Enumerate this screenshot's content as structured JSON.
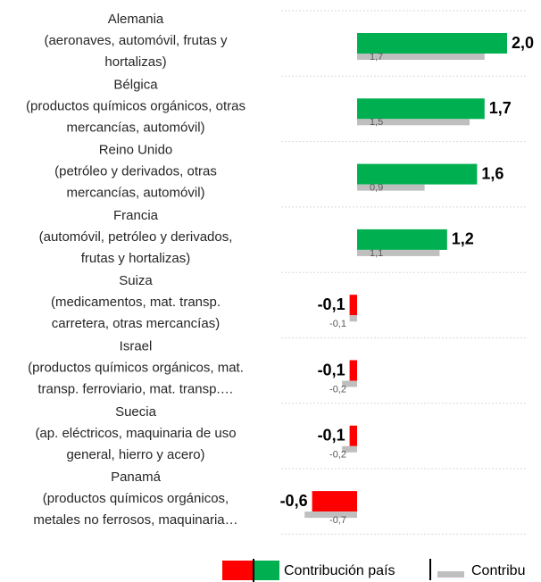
{
  "chart_data": {
    "type": "bar",
    "orientation": "horizontal",
    "categories": [
      [
        "Alemania",
        "(aeronaves, automóvil, frutas y",
        "hortalizas)"
      ],
      [
        "Bélgica",
        "(productos químicos orgánicos, otras",
        "mercancías, automóvil)"
      ],
      [
        "Reino Unido",
        "(petróleo y derivados, otras",
        "mercancías, automóvil)"
      ],
      [
        "Francia",
        "(automóvil, petróleo y derivados,",
        "frutas y hortalizas)"
      ],
      [
        "Suiza",
        "(medicamentos, mat. transp.",
        "carretera, otras mercancías)"
      ],
      [
        "Israel",
        "(productos químicos orgánicos, mat.",
        "transp. ferroviario, mat. transp.…"
      ],
      [
        "Suecia",
        "(ap. eléctricos, maquinaria de uso",
        "general, hierro y acero)"
      ],
      [
        "Panamá",
        "(productos químicos orgánicos,",
        "metales no ferrosos, maquinaria…"
      ]
    ],
    "series": [
      {
        "name": "Contribución país",
        "color": "#00b050",
        "negative_color": "#ff0000",
        "values": [
          2.0,
          1.7,
          1.6,
          1.2,
          -0.1,
          -0.1,
          -0.1,
          -0.6
        ],
        "value_labels": [
          "2,0",
          "1,7",
          "1,6",
          "1,2",
          "-0,1",
          "-0,1",
          "-0,1",
          "-0,6"
        ]
      },
      {
        "name": "Contribu",
        "color": "#bfbfbf",
        "values": [
          1.7,
          1.5,
          0.9,
          1.1,
          -0.1,
          -0.2,
          -0.2,
          -0.7
        ],
        "value_labels": [
          "1,7",
          "1,5",
          "0,9",
          "1,1",
          "-0,1",
          "-0,2",
          "-0,2",
          "-0,7"
        ]
      }
    ]
  }
}
